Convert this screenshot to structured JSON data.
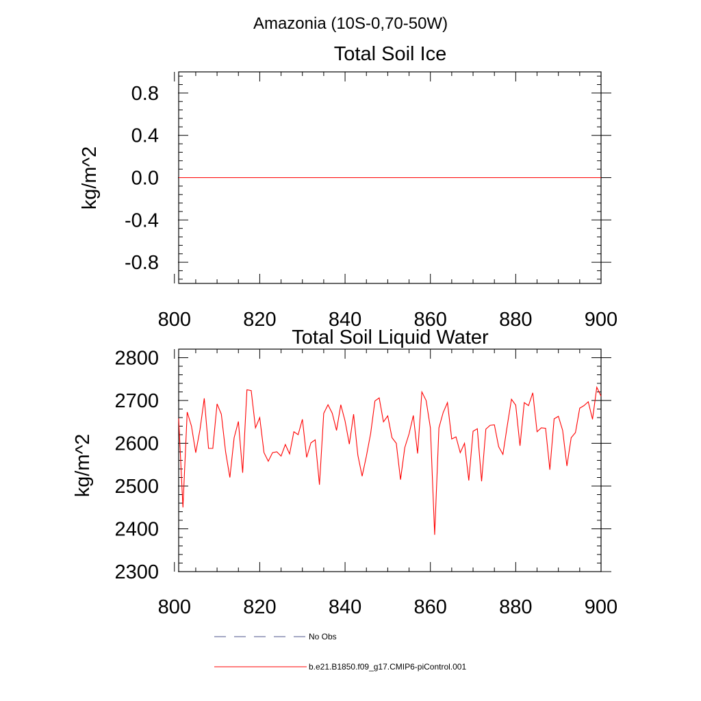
{
  "figure": {
    "title": "Amazonia (10S-0,70-50W)"
  },
  "chart_data": [
    {
      "type": "line",
      "title": "Total Soil Ice",
      "xlabel": "",
      "ylabel": "kg/m^2",
      "xlim": [
        801,
        900
      ],
      "ylim": [
        -1.0,
        1.0
      ],
      "xticks": [
        800,
        820,
        840,
        860,
        880,
        900
      ],
      "xtick_labels": [
        "800",
        "820",
        "840",
        "860",
        "880",
        "900"
      ],
      "yticks": [
        -0.8,
        -0.4,
        0.0,
        0.4,
        0.8
      ],
      "ytick_labels": [
        "-0.8",
        "-0.4",
        "0.0",
        "0.4",
        "0.8"
      ],
      "x_start": 801,
      "series": [
        {
          "name": "b.e21.B1850.f09_g17.CMIP6-piControl.001",
          "color": "#ff0000",
          "values": [
            0,
            0,
            0,
            0,
            0,
            0,
            0,
            0,
            0,
            0,
            0,
            0,
            0,
            0,
            0,
            0,
            0,
            0,
            0,
            0,
            0,
            0,
            0,
            0,
            0,
            0,
            0,
            0,
            0,
            0,
            0,
            0,
            0,
            0,
            0,
            0,
            0,
            0,
            0,
            0,
            0,
            0,
            0,
            0,
            0,
            0,
            0,
            0,
            0,
            0,
            0,
            0,
            0,
            0,
            0,
            0,
            0,
            0,
            0,
            0,
            0,
            0,
            0,
            0,
            0,
            0,
            0,
            0,
            0,
            0,
            0,
            0,
            0,
            0,
            0,
            0,
            0,
            0,
            0,
            0,
            0,
            0,
            0,
            0,
            0,
            0,
            0,
            0,
            0,
            0,
            0,
            0,
            0,
            0,
            0,
            0,
            0,
            0,
            0,
            0
          ]
        }
      ]
    },
    {
      "type": "line",
      "title": "Total Soil Liquid Water",
      "xlabel": "",
      "ylabel": "kg/m^2",
      "xlim": [
        801,
        900
      ],
      "ylim": [
        2300,
        2820
      ],
      "xticks": [
        800,
        820,
        840,
        860,
        880,
        900
      ],
      "xtick_labels": [
        "800",
        "820",
        "840",
        "860",
        "880",
        "900"
      ],
      "yticks": [
        2300,
        2400,
        2500,
        2600,
        2700,
        2800
      ],
      "ytick_labels": [
        "2300",
        "2400",
        "2500",
        "2600",
        "2700",
        "2800"
      ],
      "x_start": 801,
      "series": [
        {
          "name": "b.e21.B1850.f09_g17.CMIP6-piControl.001",
          "color": "#ff0000",
          "values": [
            2658,
            2450,
            2673,
            2640,
            2578,
            2632,
            2705,
            2588,
            2588,
            2692,
            2668,
            2580,
            2520,
            2613,
            2651,
            2531,
            2725,
            2723,
            2636,
            2660,
            2578,
            2558,
            2578,
            2580,
            2570,
            2597,
            2575,
            2627,
            2620,
            2656,
            2567,
            2601,
            2608,
            2503,
            2670,
            2690,
            2670,
            2630,
            2690,
            2652,
            2598,
            2668,
            2572,
            2523,
            2570,
            2623,
            2699,
            2706,
            2650,
            2664,
            2613,
            2600,
            2515,
            2590,
            2622,
            2665,
            2576,
            2720,
            2700,
            2636,
            2386,
            2636,
            2672,
            2695,
            2610,
            2615,
            2578,
            2600,
            2513,
            2628,
            2634,
            2511,
            2633,
            2642,
            2643,
            2592,
            2574,
            2640,
            2703,
            2689,
            2594,
            2695,
            2688,
            2718,
            2627,
            2636,
            2635,
            2538,
            2657,
            2663,
            2630,
            2547,
            2613,
            2625,
            2682,
            2688,
            2697,
            2656,
            2731,
            2710
          ]
        }
      ]
    }
  ],
  "legend": {
    "items": [
      {
        "label": "No Obs",
        "style": "dashed",
        "color": "#4a4f8a"
      },
      {
        "label": "b.e21.B1850.f09_g17.CMIP6-piControl.001",
        "style": "solid",
        "color": "#ff0000"
      }
    ]
  }
}
